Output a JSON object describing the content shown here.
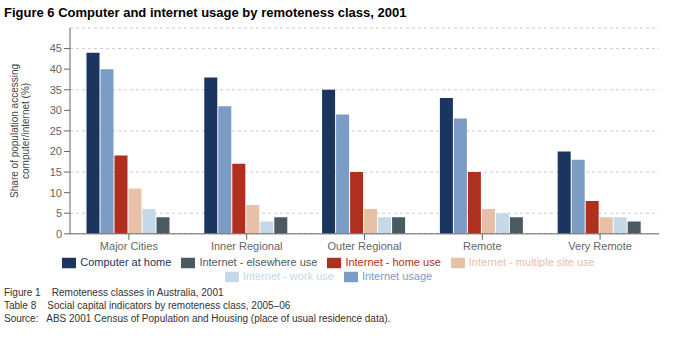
{
  "chart_data": {
    "type": "bar",
    "title": "Figure 6    Computer and internet usage by remoteness class, 2001",
    "categories": [
      "Major Cities",
      "Inner Regional",
      "Outer Regional",
      "Remote",
      "Very Remote"
    ],
    "series": [
      {
        "name": "Computer at home",
        "color": "#1a3560",
        "values": [
          44,
          38,
          35,
          33,
          20
        ]
      },
      {
        "name": "Internet usage",
        "color": "#7b9cc4",
        "values": [
          40,
          31,
          29,
          28,
          18
        ]
      },
      {
        "name": "Internet - home use",
        "color": "#b03020",
        "values": [
          19,
          17,
          15,
          15,
          8
        ]
      },
      {
        "name": "Internet - multiple site use",
        "color": "#e8c0a8",
        "values": [
          11,
          7,
          6,
          6,
          4
        ]
      },
      {
        "name": "Internet - work use",
        "color": "#c5d8e8",
        "values": [
          6,
          3,
          4,
          5,
          4
        ]
      },
      {
        "name": "Internet - elsewhere use",
        "color": "#4a5a5e",
        "values": [
          4,
          4,
          4,
          4,
          3
        ]
      }
    ],
    "ylabel": "Share of population accessing\ncomputer/internet (%)",
    "ylim": [
      0,
      50
    ],
    "yticks": [
      0,
      5,
      10,
      15,
      20,
      25,
      30,
      35,
      40,
      45
    ],
    "grid": true,
    "legend": "bottom",
    "annotations": [
      "Figure 1    Remoteness classes in Australia, 2001",
      "Table 8    Social capital indicators by remoteness class, 2005–06",
      "Source:   ABS 2001 Census of Population and Housing (place of usual residence data)."
    ]
  }
}
